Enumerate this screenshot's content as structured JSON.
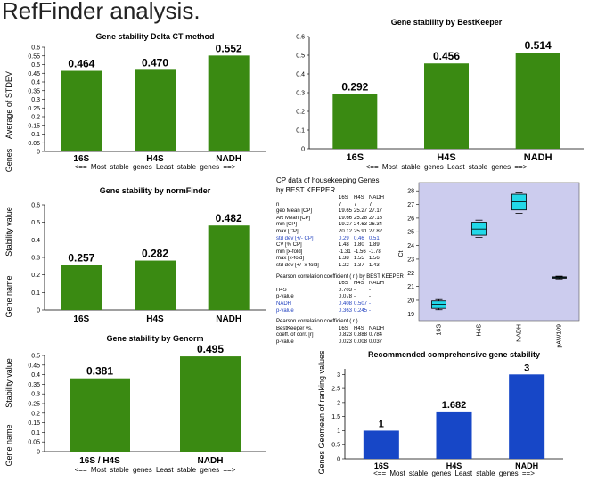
{
  "page": {
    "title": "RefFinder analysis."
  },
  "colors": {
    "green_bar": "#3a8a12",
    "blue_bar": "#1747c7",
    "box_fill": "#22d8e8",
    "plot_bg": "#ccccee",
    "highlight_text": "#1f3fbf"
  },
  "chart_data": [
    {
      "id": "delta_ct",
      "type": "bar",
      "title": "Gene stability Delta CT method",
      "ylabel": "Average of STDEV",
      "ylabel2": "Genes",
      "categories": [
        "16S",
        "H4S",
        "NADH"
      ],
      "values": [
        0.464,
        0.47,
        0.552
      ],
      "value_labels": [
        "0.464",
        "0.470",
        "0.552"
      ],
      "ylim": [
        0,
        0.6
      ],
      "ticks": [
        "0",
        "0.05",
        "0.1",
        "0.15",
        "0.2",
        "0.25",
        "0.3",
        "0.35",
        "0.4",
        "0.45",
        "0.5",
        "0.55",
        "0.6"
      ],
      "xlabel": "<== Most stable genes Least stable genes ==>",
      "grid": false
    },
    {
      "id": "bestkeeper",
      "type": "bar",
      "title": "Gene stability by BestKeeper",
      "categories": [
        "16S",
        "H4S",
        "NADH"
      ],
      "values": [
        0.292,
        0.456,
        0.514
      ],
      "value_labels": [
        "0.292",
        "0.456",
        "0.514"
      ],
      "ylim": [
        0,
        0.6
      ],
      "ticks": [
        "0",
        "0.1",
        "0.2",
        "0.3",
        "0.4",
        "0.5",
        "0.6"
      ],
      "xlabel": "<== Most stable genes Least stable genes ==>",
      "grid": false
    },
    {
      "id": "normfinder",
      "type": "bar",
      "title": "Gene stability by normFinder",
      "ylabel": "Stability value",
      "ylabel2": "Gene name",
      "categories": [
        "16S",
        "H4S",
        "NADH"
      ],
      "values": [
        0.257,
        0.282,
        0.482
      ],
      "value_labels": [
        "0.257",
        "0.282",
        "0.482"
      ],
      "ylim": [
        0,
        0.6
      ],
      "ticks": [
        "0",
        "0.1",
        "0.2",
        "0.3",
        "0.4",
        "0.5",
        "0.6"
      ],
      "grid": false
    },
    {
      "id": "genorm",
      "type": "bar",
      "title": "Gene stability by Genorm",
      "ylabel": "Stability value",
      "ylabel2": "Gene name",
      "categories": [
        "16S / H4S",
        "NADH"
      ],
      "values": [
        0.381,
        0.495
      ],
      "value_labels": [
        "0.381",
        "0.495"
      ],
      "ylim": [
        0,
        0.5
      ],
      "ticks": [
        "0",
        "0.05",
        "0.1",
        "0.15",
        "0.2",
        "0.25",
        "0.3",
        "0.35",
        "0.4",
        "0.45",
        "0.5"
      ],
      "xlabel": "<== Most stable genes Least stable genes ==>",
      "grid": false
    },
    {
      "id": "ct_boxplot",
      "type": "box",
      "ylabel": "Ct",
      "categories": [
        "16S",
        "H4S",
        "NADH",
        "pAW109"
      ],
      "boxes": [
        {
          "min": 19.3,
          "q1": 19.4,
          "median": 19.7,
          "q3": 19.95,
          "max": 20.05
        },
        {
          "min": 24.6,
          "q1": 24.75,
          "median": 25.2,
          "q3": 25.7,
          "max": 25.85
        },
        {
          "min": 26.35,
          "q1": 26.6,
          "median": 27.2,
          "q3": 27.75,
          "max": 27.85
        },
        {
          "min": 21.55,
          "q1": 21.6,
          "median": 21.65,
          "q3": 21.7,
          "max": 21.75
        }
      ],
      "ylim": [
        18.5,
        28.6
      ],
      "ticks": [
        "19",
        "20",
        "21",
        "22",
        "23",
        "24",
        "25",
        "26",
        "27",
        "28"
      ]
    },
    {
      "id": "comprehensive",
      "type": "bar",
      "title": "Recommended comprehensive gene stability",
      "ylabel": "Genes Geomean of ranking values",
      "categories": [
        "16S",
        "H4S",
        "NADH"
      ],
      "values": [
        1,
        1.682,
        3
      ],
      "value_labels": [
        "1",
        "1.682",
        "3"
      ],
      "ylim": [
        0,
        3.2
      ],
      "ticks": [
        "0",
        "0.5",
        "1",
        "1.5",
        "2",
        "2.5",
        "3"
      ],
      "xlabel": "<== Most stable genes Least stable genes ==>",
      "grid": false
    }
  ],
  "bestkeeper_table": {
    "title_line1": "CP data of housekeeping Genes",
    "title_line2": "by BEST KEEPER",
    "columns": [
      "",
      "16S",
      "H4S",
      "NADH"
    ],
    "rows": [
      [
        "n",
        "7",
        "7",
        "7"
      ],
      [
        "geo Mean [CP]",
        "19.65",
        "25.27",
        "27.17"
      ],
      [
        "AR Mean [CP]",
        "19.66",
        "25.28",
        "27.18"
      ],
      [
        "min [CP]",
        "19.27",
        "24.63",
        "26.34"
      ],
      [
        "max [CP]",
        "20.12",
        "25.91",
        "27.82"
      ],
      [
        "std dev [+/- CP]",
        "0.29",
        "0.46",
        "0.51"
      ],
      [
        "CV [% CP]",
        "1.48",
        "1.80",
        "1.89"
      ],
      [
        "min [x-fold]",
        "-1.31",
        "-1.56",
        "-1.78"
      ],
      [
        "max [x-fold]",
        "1.38",
        "1.55",
        "1.56"
      ],
      [
        "std dev [+/- x-fold]",
        "1.22",
        "1.37",
        "1.43"
      ]
    ],
    "highlight_row": "std dev [+/- CP]",
    "pearson1_title": "Pearson correlation coefficient ( r ) by BEST KEEPER",
    "pearson1_columns": [
      "",
      "16S",
      "H4S",
      "NADH"
    ],
    "pearson1_rows": [
      [
        "H4S",
        "0.703",
        "-",
        "-"
      ],
      [
        "p-value",
        "0.078",
        "-",
        "-"
      ],
      [
        "NADH",
        "0.408",
        "0.507",
        "-"
      ],
      [
        "p-value",
        "0.363",
        "0.245",
        "-"
      ]
    ],
    "pearson2_title": "Pearson correlation coefficient ( r )",
    "pearson2_columns": [
      "BestKeeper vs.",
      "16S",
      "H4S",
      "NADH"
    ],
    "pearson2_rows": [
      [
        "coeff. of corr. [r]",
        "0.823",
        "0.888",
        "0.784"
      ],
      [
        "p-value",
        "0.023",
        "0.008",
        "0.037"
      ]
    ]
  }
}
